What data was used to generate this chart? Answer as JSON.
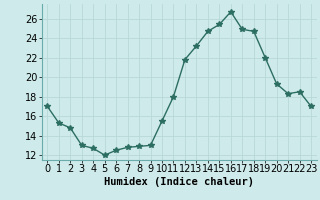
{
  "x": [
    0,
    1,
    2,
    3,
    4,
    5,
    6,
    7,
    8,
    9,
    10,
    11,
    12,
    13,
    14,
    15,
    16,
    17,
    18,
    19,
    20,
    21,
    22,
    23
  ],
  "y": [
    17.0,
    15.3,
    14.8,
    13.0,
    12.7,
    12.0,
    12.5,
    12.8,
    12.9,
    13.0,
    15.5,
    18.0,
    21.8,
    23.2,
    24.7,
    25.4,
    26.7,
    24.9,
    24.7,
    22.0,
    19.3,
    18.3,
    18.5,
    17.0
  ],
  "bg_color": "#ceeaea",
  "line_color": "#2d6e63",
  "marker": "*",
  "marker_size": 4,
  "xlabel": "Humidex (Indice chaleur)",
  "xlim": [
    -0.5,
    23.5
  ],
  "ylim": [
    11.5,
    27.5
  ],
  "yticks": [
    12,
    14,
    16,
    18,
    20,
    22,
    24,
    26
  ],
  "xticks": [
    0,
    1,
    2,
    3,
    4,
    5,
    6,
    7,
    8,
    9,
    10,
    11,
    12,
    13,
    14,
    15,
    16,
    17,
    18,
    19,
    20,
    21,
    22,
    23
  ],
  "grid_color": "#b8d8d8",
  "tick_fontsize": 7,
  "xlabel_fontsize": 7.5
}
